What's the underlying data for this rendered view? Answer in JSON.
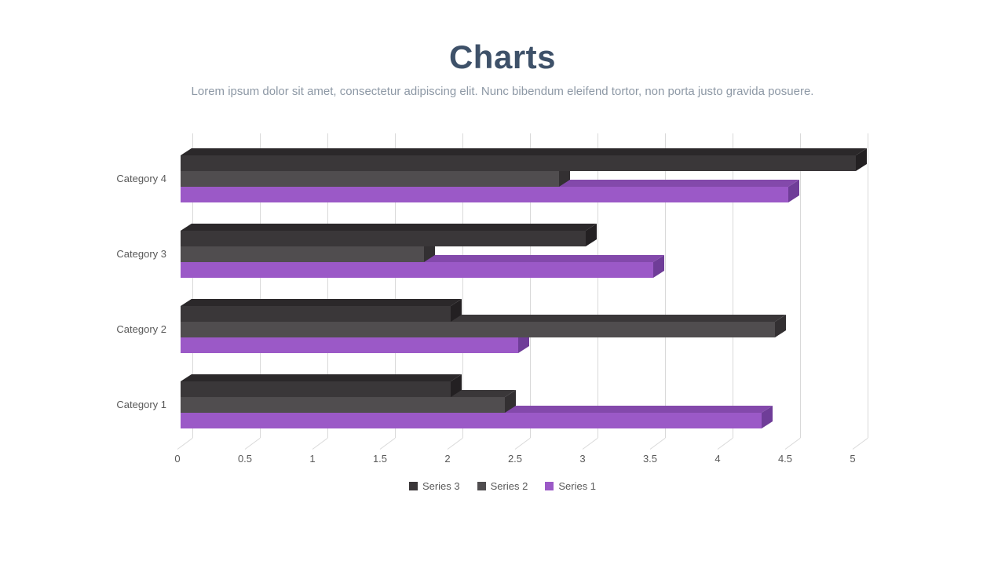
{
  "page": {
    "title": "Charts",
    "subtitle": "Lorem ipsum dolor sit amet, consectetur adipiscing elit. Nunc bibendum eleifend tortor, non porta justo gravida posuere."
  },
  "colors": {
    "title_text": "#3e5169",
    "subtitle_text": "#8d98a5",
    "axis_text": "#595959",
    "gridline": "#d9d9d9",
    "background": "#ffffff"
  },
  "series_styles": {
    "Series 1": {
      "front": "#9b59c7",
      "topface": "#8349ab",
      "sideface": "#6f3d98"
    },
    "Series 2": {
      "front": "#504d4f",
      "topface": "#3a3739",
      "sideface": "#333032"
    },
    "Series 3": {
      "front": "#3a3739",
      "topface": "#2b282a",
      "sideface": "#232022"
    }
  },
  "chart_data": {
    "type": "bar",
    "orientation": "horizontal",
    "style": "3d",
    "title": "Charts",
    "categories": [
      "Category 1",
      "Category 2",
      "Category 3",
      "Category 4"
    ],
    "series": [
      {
        "name": "Series 1",
        "color": "#9b59c7",
        "values": [
          4.3,
          2.5,
          3.5,
          4.5
        ]
      },
      {
        "name": "Series 2",
        "color": "#504d4f",
        "values": [
          2.4,
          4.4,
          1.8,
          2.8
        ]
      },
      {
        "name": "Series 3",
        "color": "#3a3739",
        "values": [
          2.0,
          2.0,
          3.0,
          5.0
        ]
      }
    ],
    "xlim": [
      0,
      5
    ],
    "x_tick_labels": [
      "0",
      "0.5",
      "1",
      "1.5",
      "2",
      "2.5",
      "3",
      "3.5",
      "4",
      "4.5",
      "5"
    ],
    "grid": true,
    "legend": [
      "Series 3",
      "Series 2",
      "Series 1"
    ],
    "legend_position": "bottom"
  }
}
